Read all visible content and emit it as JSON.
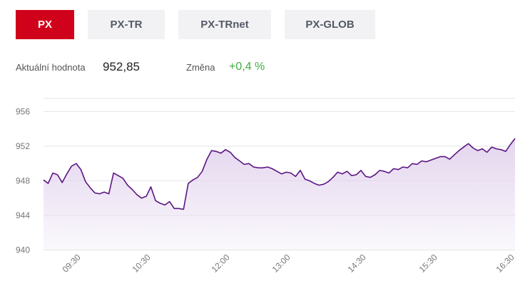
{
  "tabs": [
    {
      "label": "PX",
      "active": true
    },
    {
      "label": "PX-TR",
      "active": false
    },
    {
      "label": "PX-TRnet",
      "active": false
    },
    {
      "label": "PX-GLOB",
      "active": false
    }
  ],
  "stats": {
    "value_label": "Aktuální hodnota",
    "value": "952,85",
    "change_label": "Změna",
    "change": "+0,4 %"
  },
  "colors": {
    "active_tab": "#d0021b",
    "inactive_tab": "#f2f2f4",
    "positive": "#3fae3f",
    "line": "#5b1583",
    "area": "#e3d5ee"
  },
  "chart_data": {
    "type": "area",
    "y_ticks": [
      "956",
      "952",
      "948",
      "944",
      "940"
    ],
    "ylim": [
      940,
      957
    ],
    "x_ticks": [
      "09:30",
      "10:30",
      "12:00",
      "13:00",
      "14:30",
      "15:30",
      "16:30"
    ],
    "grid": true,
    "series": [
      {
        "values": [
          [
            0,
            948.1
          ],
          [
            1,
            947.7
          ],
          [
            2,
            948.9
          ],
          [
            3,
            948.7
          ],
          [
            4,
            947.8
          ],
          [
            5,
            948.8
          ],
          [
            6,
            949.7
          ],
          [
            7,
            950.0
          ],
          [
            8,
            949.3
          ],
          [
            9,
            947.9
          ],
          [
            10,
            947.2
          ],
          [
            11,
            946.6
          ],
          [
            12,
            946.5
          ],
          [
            13,
            946.7
          ],
          [
            14,
            946.5
          ],
          [
            15,
            948.9
          ],
          [
            16,
            948.6
          ],
          [
            17,
            948.3
          ],
          [
            18,
            947.5
          ],
          [
            19,
            947.0
          ],
          [
            20,
            946.4
          ],
          [
            21,
            946.0
          ],
          [
            22,
            946.2
          ],
          [
            23,
            947.3
          ],
          [
            24,
            945.7
          ],
          [
            25,
            945.4
          ],
          [
            26,
            945.2
          ],
          [
            27,
            945.6
          ],
          [
            28,
            944.8
          ],
          [
            29,
            944.8
          ],
          [
            30,
            944.7
          ],
          [
            31,
            947.7
          ],
          [
            32,
            948.1
          ],
          [
            33,
            948.4
          ],
          [
            34,
            949.1
          ],
          [
            35,
            950.5
          ],
          [
            36,
            951.5
          ],
          [
            37,
            951.4
          ],
          [
            38,
            951.2
          ],
          [
            39,
            951.6
          ],
          [
            40,
            951.3
          ],
          [
            41,
            950.7
          ],
          [
            42,
            950.3
          ],
          [
            43,
            949.9
          ],
          [
            44,
            950.0
          ],
          [
            45,
            949.6
          ],
          [
            46,
            949.5
          ],
          [
            47,
            949.5
          ],
          [
            48,
            949.6
          ],
          [
            49,
            949.4
          ],
          [
            50,
            949.1
          ],
          [
            51,
            948.8
          ],
          [
            52,
            949.0
          ],
          [
            53,
            948.9
          ],
          [
            54,
            948.5
          ],
          [
            55,
            949.2
          ],
          [
            56,
            948.2
          ],
          [
            57,
            948.0
          ],
          [
            58,
            947.7
          ],
          [
            59,
            947.5
          ],
          [
            60,
            947.6
          ],
          [
            61,
            947.9
          ],
          [
            62,
            948.4
          ],
          [
            63,
            949.0
          ],
          [
            64,
            948.8
          ],
          [
            65,
            949.1
          ],
          [
            66,
            948.6
          ],
          [
            67,
            948.7
          ],
          [
            68,
            949.2
          ],
          [
            69,
            948.5
          ],
          [
            70,
            948.4
          ],
          [
            71,
            948.7
          ],
          [
            72,
            949.2
          ],
          [
            73,
            949.1
          ],
          [
            74,
            948.9
          ],
          [
            75,
            949.4
          ],
          [
            76,
            949.3
          ],
          [
            77,
            949.6
          ],
          [
            78,
            949.5
          ],
          [
            79,
            950.0
          ],
          [
            80,
            949.9
          ],
          [
            81,
            950.3
          ],
          [
            82,
            950.2
          ],
          [
            83,
            950.4
          ],
          [
            84,
            950.6
          ],
          [
            85,
            950.8
          ],
          [
            86,
            950.8
          ],
          [
            87,
            950.5
          ],
          [
            88,
            951.0
          ],
          [
            89,
            951.5
          ],
          [
            90,
            951.9
          ],
          [
            91,
            952.3
          ],
          [
            92,
            951.8
          ],
          [
            93,
            951.5
          ],
          [
            94,
            951.7
          ],
          [
            95,
            951.3
          ],
          [
            96,
            951.9
          ],
          [
            97,
            951.7
          ],
          [
            98,
            951.6
          ],
          [
            99,
            951.4
          ],
          [
            100,
            952.2
          ],
          [
            101,
            952.9
          ]
        ]
      }
    ]
  }
}
